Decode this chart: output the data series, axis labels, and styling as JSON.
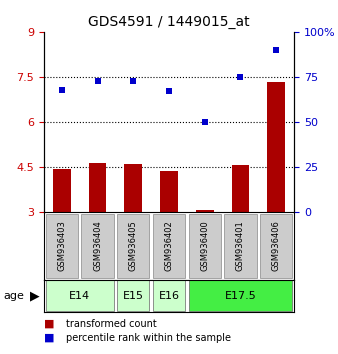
{
  "title": "GDS4591 / 1449015_at",
  "samples": [
    "GSM936403",
    "GSM936404",
    "GSM936405",
    "GSM936402",
    "GSM936400",
    "GSM936401",
    "GSM936406"
  ],
  "transformed_count": [
    4.45,
    4.65,
    4.62,
    4.38,
    3.08,
    4.58,
    7.35
  ],
  "percentile_rank": [
    68,
    73,
    73,
    67,
    50,
    75,
    90
  ],
  "age_groups": [
    {
      "label": "E14",
      "span": [
        0,
        1
      ],
      "color": "#ccffcc"
    },
    {
      "label": "E15",
      "span": [
        2,
        2
      ],
      "color": "#ccffcc"
    },
    {
      "label": "E16",
      "span": [
        3,
        3
      ],
      "color": "#ccffcc"
    },
    {
      "label": "E17.5",
      "span": [
        4,
        6
      ],
      "color": "#44ee44"
    }
  ],
  "ylim_left": [
    3,
    9
  ],
  "ylim_right": [
    0,
    100
  ],
  "yticks_left": [
    3,
    4.5,
    6,
    7.5,
    9
  ],
  "yticks_right": [
    0,
    25,
    50,
    75,
    100
  ],
  "ytick_labels_left": [
    "3",
    "4.5",
    "6",
    "7.5",
    "9"
  ],
  "ytick_labels_right": [
    "0",
    "25",
    "50",
    "75",
    "100%"
  ],
  "hlines": [
    4.5,
    6.0,
    7.5
  ],
  "bar_color": "#aa0000",
  "dot_color": "#0000cc",
  "bar_width": 0.5,
  "legend_bar_label": "transformed count",
  "legend_dot_label": "percentile rank within the sample",
  "sample_box_color": "#cccccc",
  "sample_box_edge": "#888888"
}
